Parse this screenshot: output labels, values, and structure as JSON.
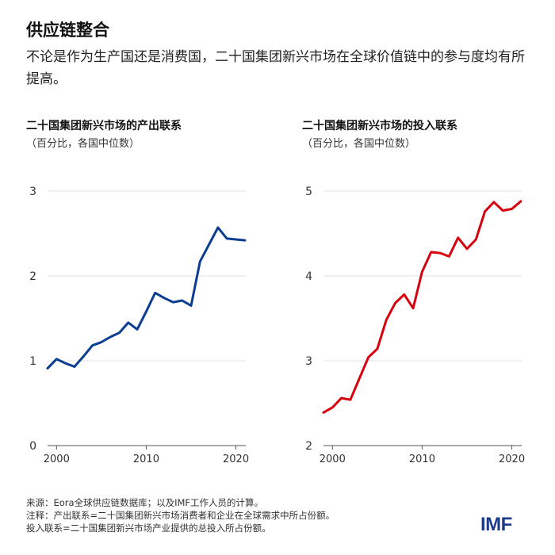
{
  "title": "供应链整合",
  "subtitle": "不论是作为生产国还是消费国，二十国集团新兴市场在全球价值链中的参与度均有所提高。",
  "footer": {
    "source": "来源：Eora全球供应链数据库；以及IMF工作人员的计算。",
    "note1": "注释：产出联系=二十国集团新兴市场消费者和企业在全球需求中所占份额。",
    "note2": "投入联系=二十国集团新兴市场产业提供的总投入所占份额。"
  },
  "logo": "IMF",
  "chart_data": [
    {
      "type": "line",
      "title": "二十国集团新兴市场的产出联系",
      "subtitle": "（百分比，各国中位数）",
      "color": "#0b3d91",
      "x": [
        1999,
        2000,
        2001,
        2002,
        2003,
        2004,
        2005,
        2006,
        2007,
        2008,
        2009,
        2010,
        2011,
        2012,
        2013,
        2014,
        2015,
        2016,
        2017,
        2018,
        2019,
        2020,
        2021
      ],
      "values": [
        0.91,
        1.02,
        0.97,
        0.93,
        1.05,
        1.18,
        1.22,
        1.28,
        1.33,
        1.45,
        1.37,
        1.58,
        1.8,
        1.74,
        1.69,
        1.71,
        1.65,
        2.17,
        2.37,
        2.57,
        2.44,
        2.43,
        2.42
      ],
      "ylim": [
        0,
        3
      ],
      "yticks": [
        "0",
        "1",
        "2",
        "3"
      ],
      "xticks": [
        "2000",
        "2010",
        "2020"
      ],
      "grid": true
    },
    {
      "type": "line",
      "title": "二十国集团新兴市场的投入联系",
      "subtitle": "（百分比，各国中位数）",
      "color": "#d7000f",
      "x": [
        1999,
        2000,
        2001,
        2002,
        2003,
        2004,
        2005,
        2006,
        2007,
        2008,
        2009,
        2010,
        2011,
        2012,
        2013,
        2014,
        2015,
        2016,
        2017,
        2018,
        2019,
        2020,
        2021
      ],
      "values": [
        2.39,
        2.45,
        2.56,
        2.54,
        2.79,
        3.04,
        3.14,
        3.48,
        3.68,
        3.78,
        3.62,
        4.05,
        4.28,
        4.27,
        4.23,
        4.45,
        4.32,
        4.43,
        4.76,
        4.87,
        4.77,
        4.79,
        4.88
      ],
      "ylim": [
        2,
        5
      ],
      "yticks": [
        "2",
        "3",
        "4",
        "5"
      ],
      "xticks": [
        "2000",
        "2010",
        "2020"
      ],
      "grid": true
    }
  ]
}
